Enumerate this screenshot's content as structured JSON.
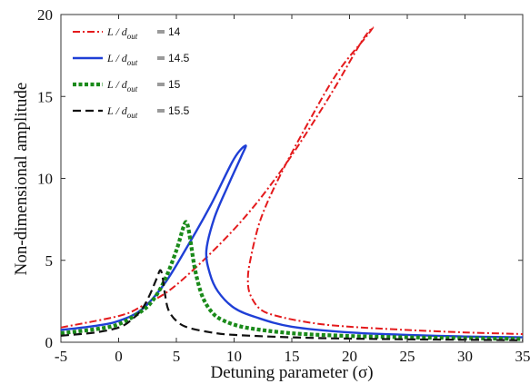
{
  "chart_data": {
    "type": "line",
    "title": "",
    "xlabel": "Detuning parameter (σ)",
    "ylabel": "Non-dimensional amplitude",
    "xlim": [
      -5,
      35
    ],
    "ylim": [
      0,
      20
    ],
    "xticks": [
      -5,
      0,
      5,
      10,
      15,
      20,
      25,
      30,
      35
    ],
    "yticks": [
      0,
      5,
      10,
      15,
      20
    ],
    "grid": false,
    "legend_position": "top-left",
    "series": [
      {
        "name": "L / d_out = 14",
        "legend_ratio": "L / d",
        "legend_sub": "out",
        "legend_value": "14",
        "color": "#e41a1c",
        "dash": "dashdot",
        "x": [
          -5,
          0,
          2,
          5,
          10,
          14,
          18,
          21,
          22,
          21.5,
          19,
          16.5,
          14,
          12.3,
          11.4,
          11.2,
          11.4,
          12.3,
          14,
          17,
          20,
          25,
          30,
          35
        ],
        "y": [
          0.9,
          1.6,
          2.2,
          3.5,
          6.9,
          10.4,
          14.7,
          18.3,
          19.2,
          18.7,
          16.5,
          13.5,
          10.2,
          7.5,
          5.0,
          3.8,
          2.9,
          2.0,
          1.55,
          1.15,
          0.95,
          0.75,
          0.6,
          0.5
        ]
      },
      {
        "name": "L / d_out = 14.5",
        "legend_ratio": "L / d",
        "legend_sub": "out",
        "legend_value": "14.5",
        "color": "#1f3fd6",
        "dash": "solid",
        "x": [
          -5,
          -2,
          0,
          2,
          4,
          6,
          8,
          10,
          11,
          10.6,
          9.5,
          8.3,
          7.6,
          7.9,
          8.6,
          10,
          12,
          15,
          20,
          25,
          30,
          35
        ],
        "y": [
          0.75,
          1.0,
          1.3,
          2.0,
          3.6,
          5.9,
          8.4,
          11.2,
          12.0,
          11.3,
          9.6,
          7.6,
          5.6,
          4.2,
          3.1,
          2.1,
          1.5,
          0.95,
          0.6,
          0.45,
          0.35,
          0.3
        ]
      },
      {
        "name": "L / d_out = 15",
        "legend_ratio": "L / d",
        "legend_sub": "out",
        "legend_value": "15",
        "color": "#1a8a1a",
        "dash": "dotted",
        "x": [
          -5,
          -2,
          0,
          2,
          3,
          4,
          5,
          5.6,
          5.9,
          6.2,
          6.6,
          7.2,
          8,
          9,
          11,
          15,
          20,
          25,
          30,
          35
        ],
        "y": [
          0.55,
          0.8,
          1.1,
          1.9,
          2.6,
          3.8,
          5.6,
          7.0,
          7.3,
          6.3,
          4.5,
          2.9,
          1.9,
          1.35,
          0.9,
          0.55,
          0.38,
          0.3,
          0.25,
          0.2
        ]
      },
      {
        "name": "L / d_out = 15.5",
        "legend_ratio": "L / d",
        "legend_sub": "out",
        "legend_value": "15.5",
        "color": "#111111",
        "dash": "dashed",
        "x": [
          -5,
          -2,
          0,
          1,
          2,
          2.7,
          3.3,
          3.6,
          3.8,
          4.0,
          4.3,
          5,
          6,
          8,
          10,
          15,
          20,
          25,
          30,
          35
        ],
        "y": [
          0.4,
          0.6,
          0.9,
          1.3,
          2.0,
          2.9,
          3.9,
          4.4,
          4.0,
          3.0,
          2.0,
          1.3,
          0.9,
          0.6,
          0.45,
          0.3,
          0.22,
          0.18,
          0.15,
          0.12
        ]
      }
    ]
  }
}
